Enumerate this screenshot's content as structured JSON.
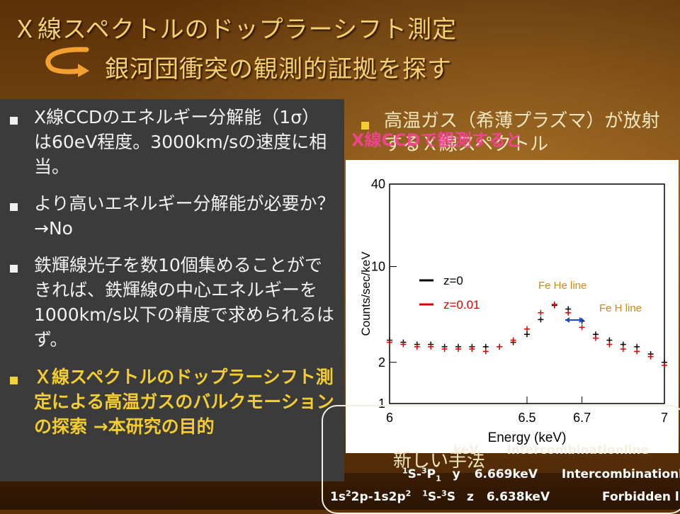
{
  "title": {
    "line1": "Ｘ線スペクトルのドップラーシフト測定",
    "line2": "銀河団衝突の観測的証拠を探す"
  },
  "left_bullets": [
    {
      "text": "X線CCDのエネルギー分解能（1σ）は60eV程度。3000km/sの速度に相当。",
      "highlight": false
    },
    {
      "text": "より高いエネルギー分解能が必要か？　→No",
      "highlight": false
    },
    {
      "text": "鉄輝線光子を数10個集めることができれば、鉄輝線の中心エネルギーを1000km/s以下の精度で求められるはず。",
      "highlight": false
    },
    {
      "text": "Ｘ線スペクトルのドップラーシフト測定による高温ガスのバルクモーションの探索 →本研究の目的",
      "highlight": true
    }
  ],
  "right_text": "高温ガス（希薄プラズマ）が放射するＸ線スペクトル",
  "overlay_label": "X線CCDで観測すると",
  "bottom_text": "新しい手法",
  "transitions": [
    {
      "ion": "",
      "term": "",
      "name": "",
      "energy": "keV",
      "type": "Intercombinationline"
    },
    {
      "ion": "",
      "term": "1S-3P1",
      "name": "y",
      "energy": "6.669keV",
      "type": "Intercombinationline"
    },
    {
      "ion": "1s22p-1s2p2",
      "term": "1S-3S",
      "name": "z",
      "energy": "6.638keV",
      "type": "Forbidden line"
    }
  ],
  "chart_data": {
    "type": "scatter",
    "xlabel": "Energy (keV)",
    "ylabel": "Counts/sec/keV",
    "xlim": [
      6,
      7
    ],
    "ylim": [
      1,
      40
    ],
    "yscale": "log",
    "x_ticks": [
      "6",
      "6.5",
      "6.7",
      "7"
    ],
    "y_ticks": [
      "1",
      "2",
      "10",
      "40"
    ],
    "legend": [
      "z=0",
      "z=0.01"
    ],
    "annotations": [
      "Fe He line",
      "Fe H line"
    ],
    "series": [
      {
        "name": "z=0",
        "color": "#000000",
        "x": [
          6.0,
          6.05,
          6.1,
          6.15,
          6.2,
          6.25,
          6.3,
          6.35,
          6.4,
          6.45,
          6.5,
          6.55,
          6.6,
          6.65,
          6.7,
          6.75,
          6.8,
          6.85,
          6.9,
          6.95,
          7.0
        ],
        "y": [
          2.9,
          2.8,
          2.7,
          2.7,
          2.6,
          2.6,
          2.6,
          2.6,
          2.6,
          2.8,
          3.2,
          4.1,
          5.2,
          4.9,
          4.0,
          3.2,
          2.9,
          2.7,
          2.6,
          2.3,
          2.0
        ]
      },
      {
        "name": "z=0.01",
        "color": "#e00000",
        "x": [
          6.0,
          6.05,
          6.1,
          6.15,
          6.2,
          6.25,
          6.3,
          6.35,
          6.4,
          6.45,
          6.5,
          6.55,
          6.6,
          6.65,
          6.7,
          6.75,
          6.8,
          6.85,
          6.9,
          6.95,
          7.0
        ],
        "y": [
          2.8,
          2.7,
          2.6,
          2.6,
          2.5,
          2.5,
          2.5,
          2.4,
          2.6,
          2.9,
          3.5,
          4.6,
          5.3,
          4.6,
          3.6,
          3.0,
          2.7,
          2.5,
          2.4,
          2.2,
          1.9
        ]
      }
    ]
  },
  "colors": {
    "title": "#f4d070",
    "highlight": "#f2cc30",
    "overlay": "#ff40a0"
  }
}
